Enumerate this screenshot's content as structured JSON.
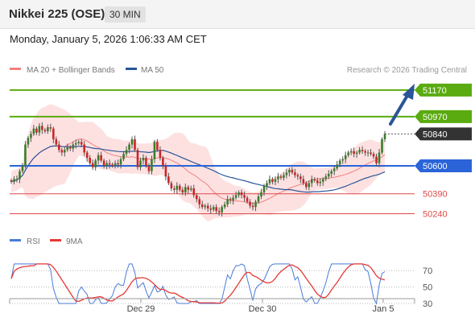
{
  "header": {
    "instrument": "Nikkei 225 (OSE)",
    "timeframe": "30 MIN",
    "datetime": "Monday, January 5, 2026 1:06:33 AM CET"
  },
  "credit": "Research © 2026 Trading Central",
  "chart_data": [
    {
      "type": "candlestick",
      "title": "Nikkei 225 (OSE)",
      "ylim": [
        50140,
        51290
      ],
      "legend": [
        {
          "name": "MA 20 + Bollinger Bands",
          "color": "#f08080"
        },
        {
          "name": "MA 50",
          "color": "#2a5597"
        }
      ],
      "levels": [
        {
          "value": 51170,
          "label": "51170",
          "kind": "resistance",
          "color": "#5aab0f"
        },
        {
          "value": 50970,
          "label": "50970",
          "kind": "resistance",
          "color": "#5aab0f"
        },
        {
          "value": 50840,
          "label": "50840",
          "kind": "last-price",
          "color": "#333333"
        },
        {
          "value": 50600,
          "label": "50600",
          "kind": "pivot",
          "color": "#2a64d8"
        },
        {
          "value": 50390,
          "label": "50390",
          "kind": "support",
          "color": "#e04848"
        },
        {
          "value": 50240,
          "label": "50240",
          "kind": "support",
          "color": "#e04848"
        }
      ],
      "x_ticks": [
        "Dec 29",
        "Dec 30",
        "Jan 5"
      ],
      "closes": [
        50480,
        50500,
        50500,
        50560,
        50600,
        50760,
        50810,
        50840,
        50880,
        50850,
        50900,
        50870,
        50860,
        50890,
        50880,
        50800,
        50760,
        50720,
        50700,
        50720,
        50740,
        50730,
        50760,
        50770,
        50780,
        50760,
        50700,
        50660,
        50620,
        50590,
        50640,
        50680,
        50640,
        50600,
        50620,
        50610,
        50600,
        50620,
        50610,
        50650,
        50690,
        50720,
        50760,
        50800,
        50720,
        50590,
        50640,
        50660,
        50600,
        50560,
        50650,
        50780,
        50720,
        50660,
        50600,
        50520,
        50470,
        50430,
        50420,
        50450,
        50420,
        50400,
        50440,
        50420,
        50430,
        50380,
        50350,
        50310,
        50290,
        50300,
        50280,
        50270,
        50290,
        50260,
        50250,
        50290,
        50310,
        50350,
        50340,
        50360,
        50380,
        50400,
        50380,
        50360,
        50330,
        50300,
        50290,
        50330,
        50370,
        50400,
        50450,
        50470,
        50500,
        50480,
        50500,
        50520,
        50510,
        50530,
        50550,
        50570,
        50550,
        50530,
        50520,
        50500,
        50470,
        50440,
        50470,
        50500,
        50490,
        50470,
        50480,
        50500,
        50520,
        50540,
        50560,
        50580,
        50610,
        50640,
        50650,
        50680,
        50700,
        50710,
        50690,
        50700,
        50720,
        50710,
        50700,
        50700,
        50690,
        50670,
        50620,
        50700,
        50800,
        50840
      ],
      "rsi_levels": [
        70,
        50,
        30
      ],
      "rsi_legend": [
        {
          "name": "RSI",
          "color": "#4a7bd9"
        },
        {
          "name": "9MA",
          "color": "#e53935"
        }
      ]
    }
  ]
}
